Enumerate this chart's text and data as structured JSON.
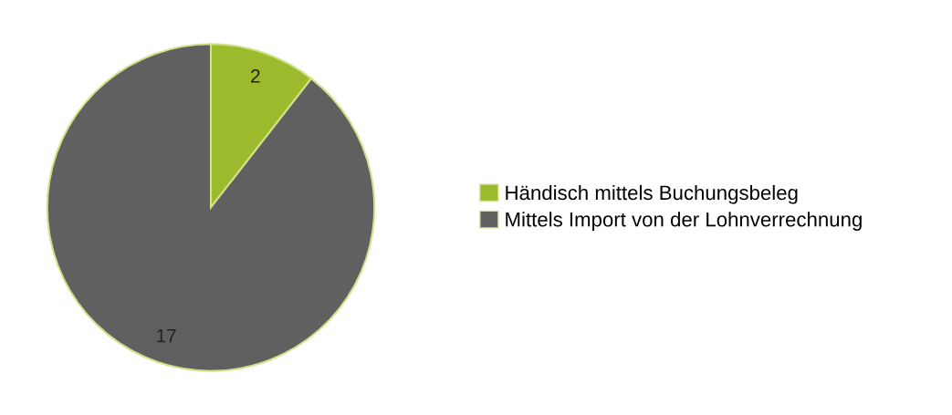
{
  "chart_data": {
    "type": "pie",
    "categories": [
      "Händisch mittels Buchungsbeleg",
      "Mittels Import von der Lohnverrechnung"
    ],
    "values": [
      2,
      17
    ],
    "colors": [
      "#9bbb2d",
      "#606060"
    ],
    "data_labels": true,
    "legend": "right"
  }
}
